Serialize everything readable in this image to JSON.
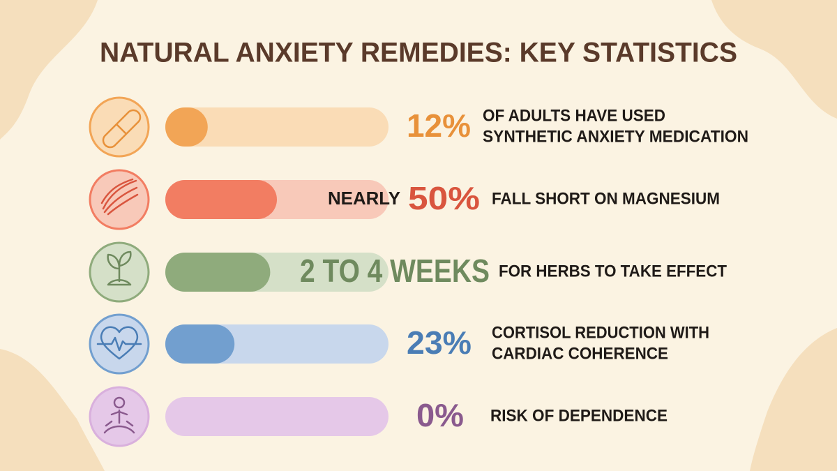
{
  "title": "NATURAL ANXIETY REMEDIES: KEY STATISTICS",
  "rows": [
    {
      "stat": "12%",
      "description": [
        "OF ADULTS HAVE USED",
        "SYNTHETIC ANXIETY MEDICATION"
      ],
      "fill": 19,
      "color": "#f2a556",
      "track": "#fadcb6",
      "stat_color": "#e8913a"
    },
    {
      "prefix": "NEARLY",
      "stat": "50%",
      "description": [
        "FALL SHORT ON MAGNESIUM"
      ],
      "fill": 50,
      "color": "#f27d62",
      "track": "#f8c9b9",
      "stat_color": "#d9553e"
    },
    {
      "stat": "2 TO 4 WEEKS",
      "description": [
        "FOR HERBS TO TAKE EFFECT"
      ],
      "fill": 47,
      "color": "#8fab7c",
      "track": "#d5e0c8",
      "stat_color": "#6f8a5e"
    },
    {
      "stat": "23%",
      "description": [
        "CORTISOL REDUCTION WITH",
        "CARDIAC COHERENCE"
      ],
      "fill": 31,
      "color": "#729fcf",
      "track": "#c8d7ec",
      "stat_color": "#4a7db5"
    },
    {
      "stat": "0%",
      "description": [
        "RISK OF DEPENDENCE"
      ],
      "fill": 0,
      "color": "#d9b0dd",
      "track": "#e5c8e8",
      "stat_color": "#8a5a8e"
    }
  ]
}
